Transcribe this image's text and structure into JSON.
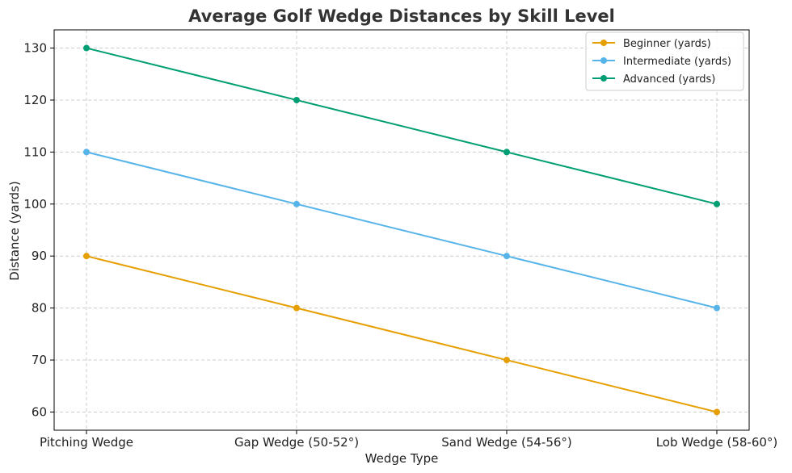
{
  "chart_data": {
    "type": "line",
    "title": "Average Golf Wedge Distances by Skill Level",
    "xlabel": "Wedge Type",
    "ylabel": "Distance (yards)",
    "categories": [
      "Pitching Wedge",
      "Gap Wedge (50-52°)",
      "Sand Wedge (54-56°)",
      "Lob Wedge (58-60°)"
    ],
    "ylim": [
      56.5,
      133.5
    ],
    "yticks": [
      60,
      70,
      80,
      90,
      100,
      110,
      120,
      130
    ],
    "grid": true,
    "legend_position": "top-right",
    "series": [
      {
        "name": "Beginner (yards)",
        "color": "#E69F00",
        "values": [
          90,
          80,
          70,
          60
        ]
      },
      {
        "name": "Intermediate (yards)",
        "color": "#56B4E9",
        "values": [
          110,
          100,
          90,
          80
        ]
      },
      {
        "name": "Advanced (yards)",
        "color": "#009E73",
        "values": [
          130,
          120,
          110,
          100
        ]
      }
    ]
  }
}
